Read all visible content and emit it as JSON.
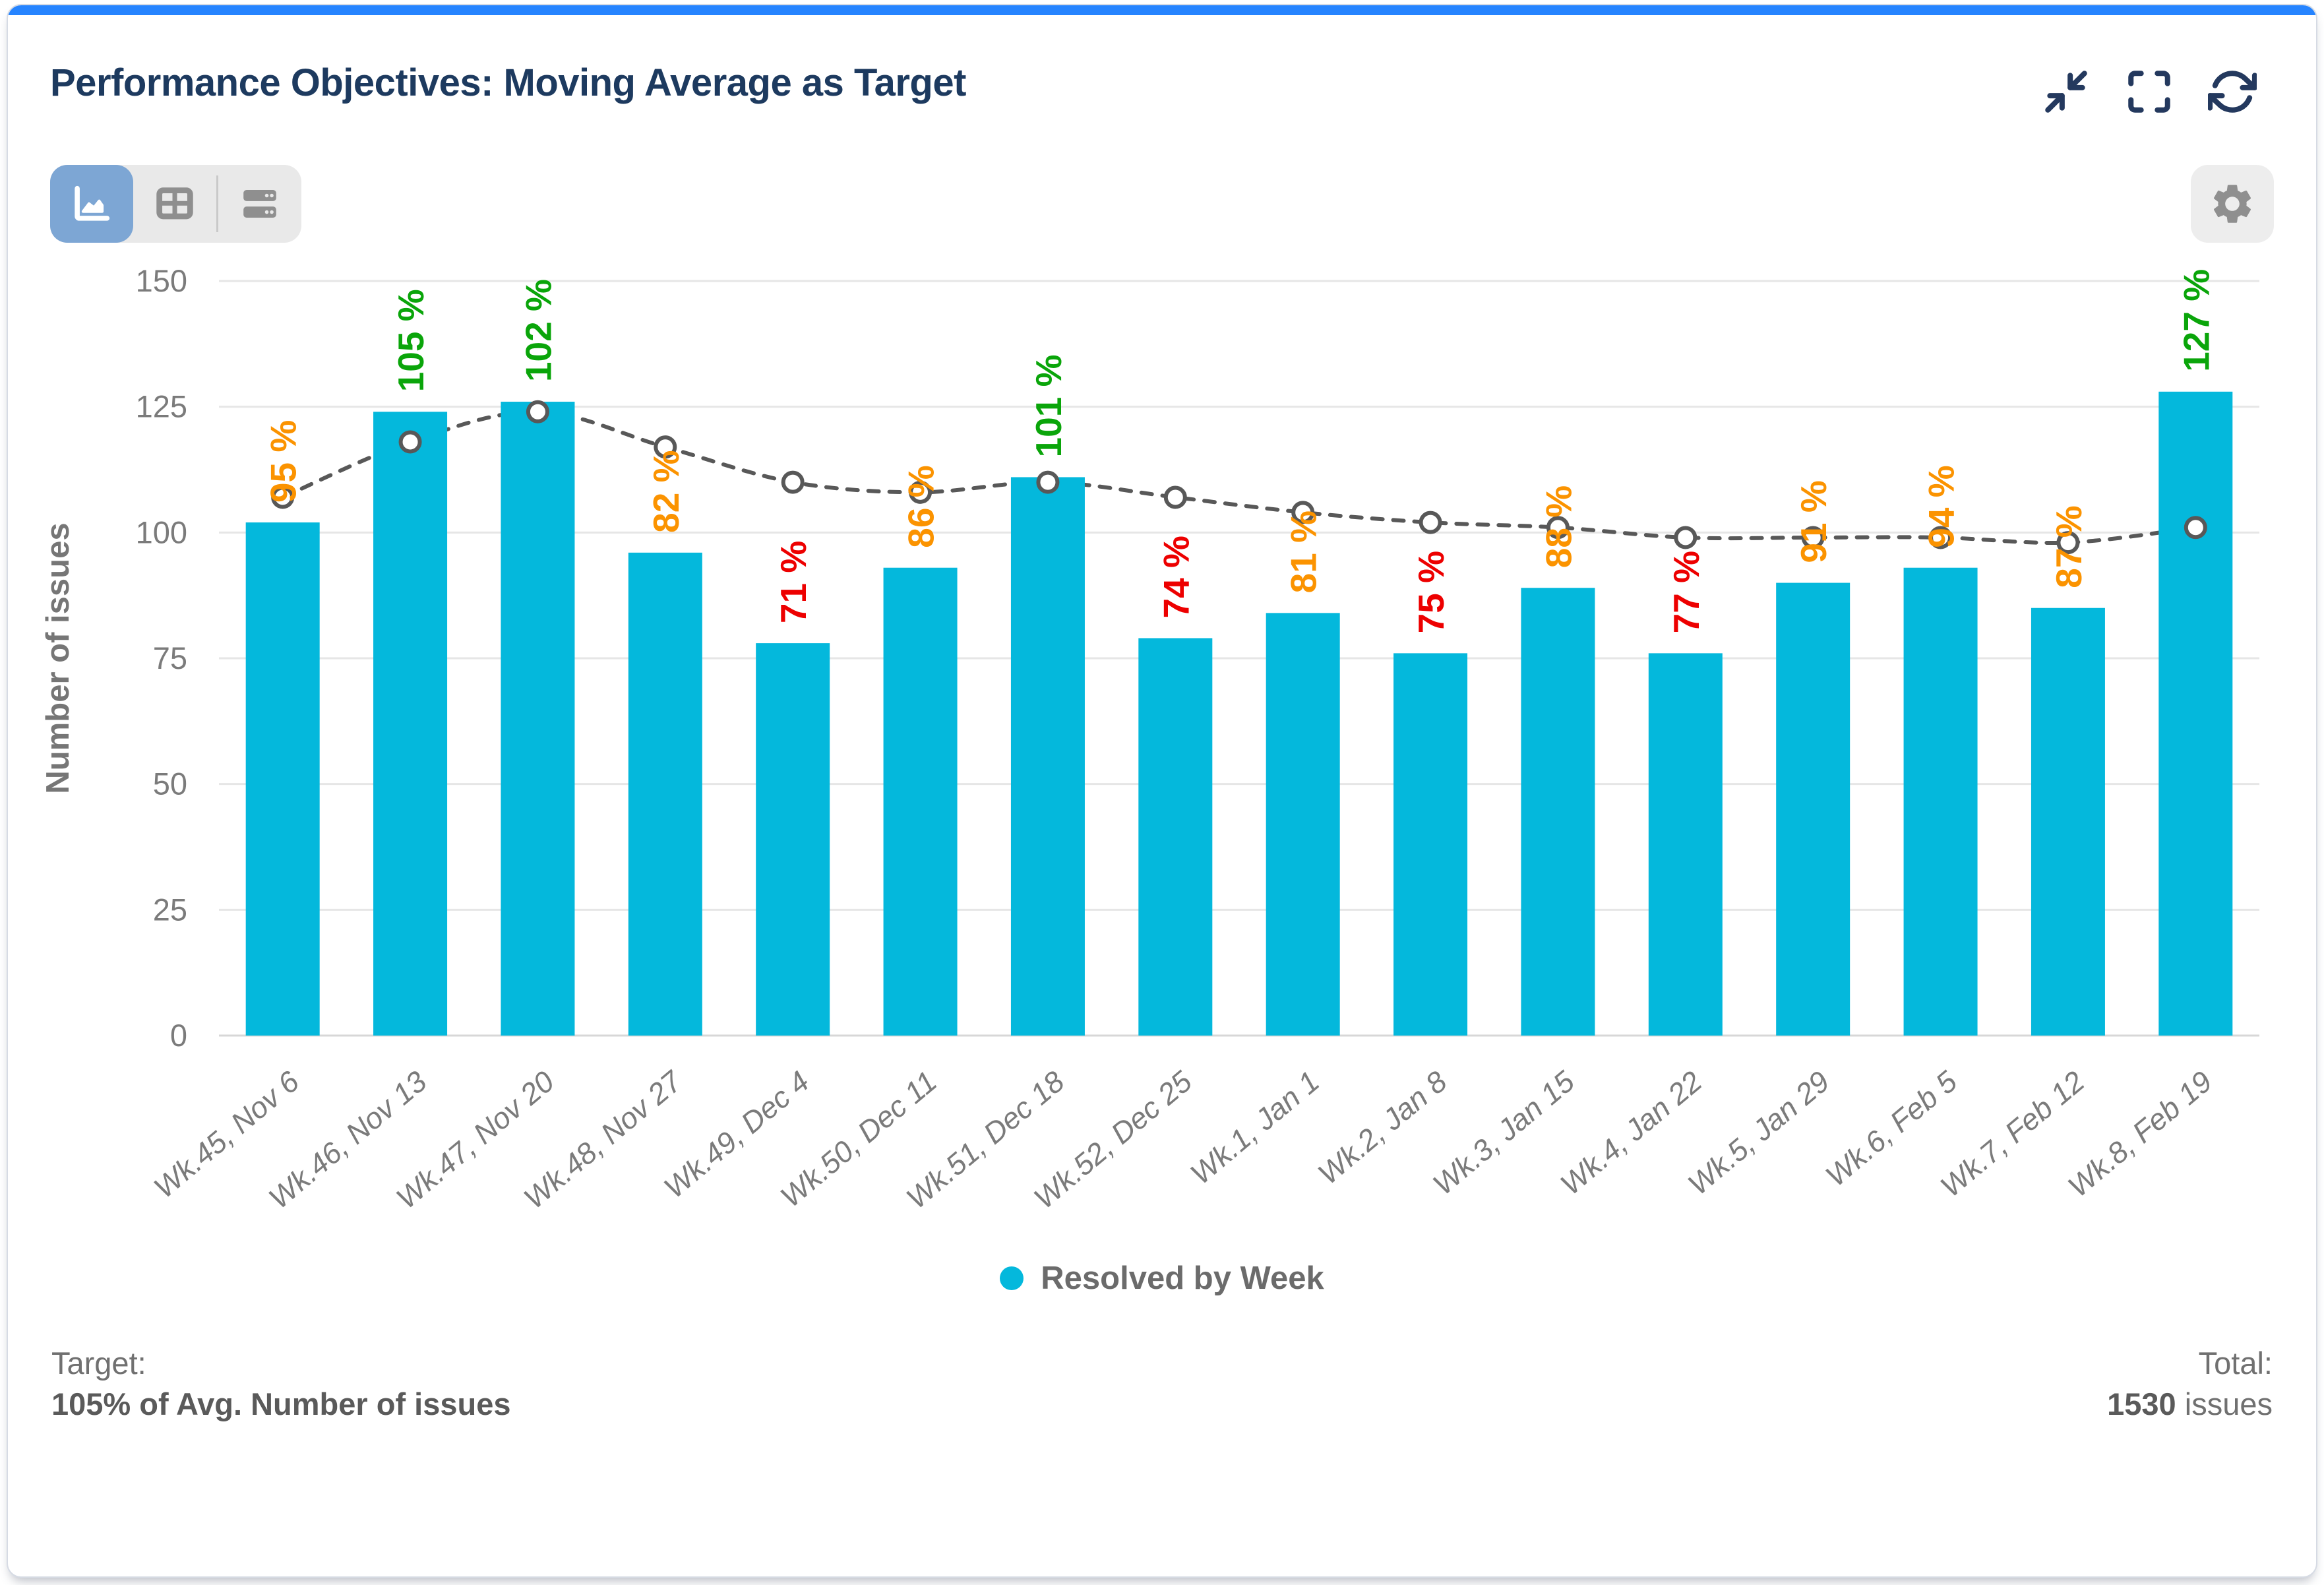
{
  "header": {
    "title": "Performance Objectives: Moving Average as Target",
    "icons": [
      "collapse-icon",
      "fullscreen-icon",
      "refresh-icon"
    ]
  },
  "toolbar": {
    "views": [
      {
        "name": "chart-view",
        "icon": "area-chart-icon",
        "selected": true
      },
      {
        "name": "table-view",
        "icon": "table-icon",
        "selected": false
      },
      {
        "name": "list-view",
        "icon": "rows-icon",
        "selected": false
      }
    ],
    "settings_icon": "gear-icon"
  },
  "colors": {
    "accent_bar": "#2684ff",
    "bar": "#04b8dc",
    "selected_view_bg": "#7da6d4",
    "title_text": "#1d3a5f",
    "moving_avg_line": "#585858"
  },
  "chart_data": {
    "type": "bar",
    "title": "Performance Objectives: Moving Average as Target",
    "xlabel": "",
    "ylabel": "Number of issues",
    "ylim": [
      0,
      150
    ],
    "yticks": [
      0,
      25,
      50,
      75,
      100,
      125,
      150
    ],
    "grid": true,
    "legend_position": "bottom",
    "categories": [
      "Wk.45, Nov 6",
      "Wk.46, Nov 13",
      "Wk.47, Nov 20",
      "Wk.48, Nov 27",
      "Wk.49, Dec 4",
      "Wk.50, Dec 11",
      "Wk.51, Dec 18",
      "Wk.52, Dec 25",
      "Wk.1, Jan 1",
      "Wk.2, Jan 8",
      "Wk.3, Jan 15",
      "Wk.4, Jan 22",
      "Wk.5, Jan 29",
      "Wk.6, Feb 5",
      "Wk.7, Feb 12",
      "Wk.8, Feb 19"
    ],
    "series": [
      {
        "name": "Resolved by Week",
        "type": "bar",
        "color": "#04b8dc",
        "values": [
          102,
          124,
          126,
          96,
          78,
          93,
          111,
          79,
          84,
          76,
          89,
          76,
          90,
          93,
          85,
          128
        ]
      },
      {
        "name": "Moving Average (target)",
        "type": "line",
        "dashed": true,
        "color": "#585858",
        "marker": "open-circle",
        "values": [
          107,
          118,
          124,
          117,
          110,
          108,
          110,
          107,
          104,
          102,
          101,
          99,
          99,
          99,
          98,
          101
        ]
      }
    ],
    "point_labels": {
      "values": [
        "95 %",
        "105 %",
        "102 %",
        "82 %",
        "71 %",
        "86 %",
        "101 %",
        "74 %",
        "81 %",
        "75 %",
        "88 %",
        "77 %",
        "91 %",
        "94 %",
        "87 %",
        "127 %"
      ],
      "statuses": [
        "warn",
        "ok",
        "ok",
        "warn",
        "bad",
        "warn",
        "ok",
        "bad",
        "warn",
        "bad",
        "warn",
        "bad",
        "warn",
        "warn",
        "warn",
        "ok"
      ],
      "status_colors": {
        "ok": "#0aa50a",
        "warn": "#fb9300",
        "bad": "#ed0000"
      }
    }
  },
  "legend": {
    "label": "Resolved by Week",
    "color": "#04b8dc"
  },
  "footer": {
    "target_label": "Target:",
    "target_value": "105% of Avg. Number of issues",
    "total_label": "Total:",
    "total_value": "1530",
    "total_unit": "issues"
  }
}
